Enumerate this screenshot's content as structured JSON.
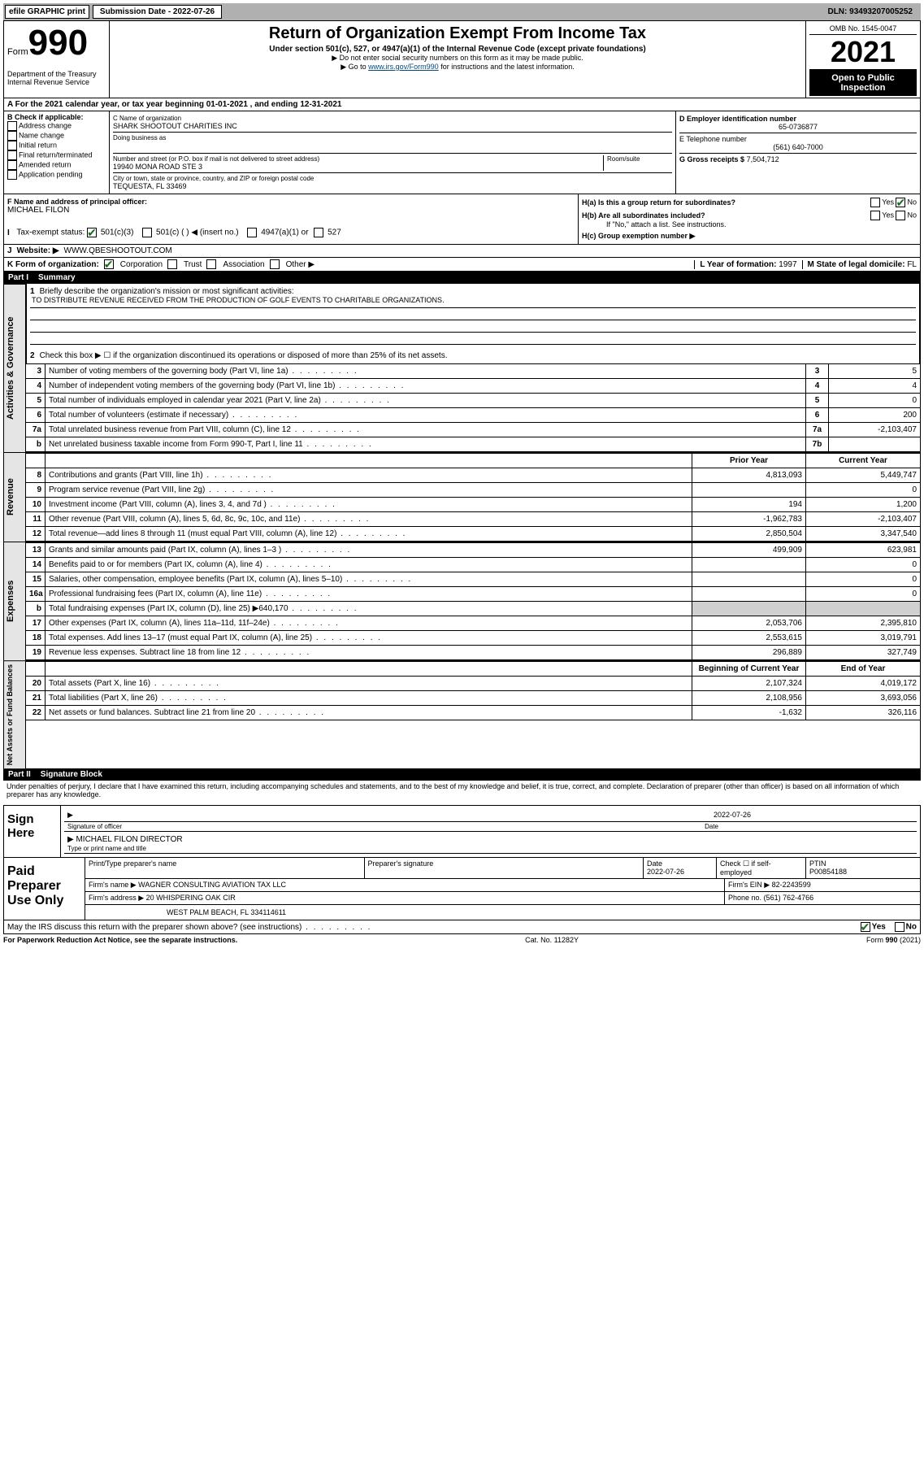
{
  "top": {
    "efile": "efile GRAPHIC print",
    "submission_label": "Submission Date - 2022-07-26",
    "dln": "DLN: 93493207005252"
  },
  "header": {
    "form_prefix": "Form",
    "form_number": "990",
    "dept": "Department of the Treasury",
    "irs": "Internal Revenue Service",
    "title": "Return of Organization Exempt From Income Tax",
    "subtitle": "Under section 501(c), 527, or 4947(a)(1) of the Internal Revenue Code (except private foundations)",
    "note1": "▶ Do not enter social security numbers on this form as it may be made public.",
    "note2_prefix": "▶ Go to ",
    "note2_link": "www.irs.gov/Form990",
    "note2_suffix": " for instructions and the latest information.",
    "omb": "OMB No. 1545-0047",
    "year": "2021",
    "open": "Open to Public Inspection"
  },
  "rowA": "A For the 2021 calendar year, or tax year beginning 01-01-2021    , and ending 12-31-2021",
  "sectionB": {
    "b_label": "B Check if applicable:",
    "checks": [
      "Address change",
      "Name change",
      "Initial return",
      "Final return/terminated",
      "Amended return",
      "Application pending"
    ],
    "c_label": "C Name of organization",
    "org_name": "SHARK SHOOTOUT CHARITIES INC",
    "dba_label": "Doing business as",
    "addr_label": "Number and street (or P.O. box if mail is not delivered to street address)",
    "room_label": "Room/suite",
    "addr": "19940 MONA ROAD STE 3",
    "city_label": "City or town, state or province, country, and ZIP or foreign postal code",
    "city": "TEQUESTA, FL  33469",
    "d_label": "D Employer identification number",
    "ein": "65-0736877",
    "e_label": "E Telephone number",
    "phone": "(561) 640-7000",
    "g_label": "G Gross receipts $",
    "gross": "7,504,712",
    "f_label": "F  Name and address of principal officer:",
    "officer": "MICHAEL FILON",
    "ha": "H(a)  Is this a group return for subordinates?",
    "hb": "H(b)  Are all subordinates included?",
    "hb_note": "If \"No,\" attach a list. See instructions.",
    "hc": "H(c)  Group exemption number ▶",
    "yes": "Yes",
    "no": "No"
  },
  "rowI": {
    "label": "Tax-exempt status:",
    "opt1": "501(c)(3)",
    "opt2": "501(c) (  ) ◀ (insert no.)",
    "opt3": "4947(a)(1) or",
    "opt4": "527"
  },
  "rowJ": {
    "label": "Website: ▶",
    "value": "WWW.QBESHOOTOUT.COM"
  },
  "rowK": {
    "label": "K Form of organization:",
    "opts": [
      "Corporation",
      "Trust",
      "Association",
      "Other ▶"
    ],
    "l_label": "L Year of formation:",
    "l_val": "1997",
    "m_label": "M State of legal domicile:",
    "m_val": "FL"
  },
  "partI": {
    "num": "Part I",
    "title": "Summary"
  },
  "summary": {
    "q1_label": "Briefly describe the organization's mission or most significant activities:",
    "q1_text": "TO DISTRIBUTE REVENUE RECEIVED FROM THE PRODUCTION OF GOLF EVENTS TO CHARITABLE ORGANIZATIONS.",
    "q2": "Check this box ▶ ☐  if the organization discontinued its operations or disposed of more than 25% of its net assets.",
    "rows3_7": [
      {
        "n": "3",
        "t": "Number of voting members of the governing body (Part VI, line 1a)",
        "lab": "3",
        "v": "5"
      },
      {
        "n": "4",
        "t": "Number of independent voting members of the governing body (Part VI, line 1b)",
        "lab": "4",
        "v": "4"
      },
      {
        "n": "5",
        "t": "Total number of individuals employed in calendar year 2021 (Part V, line 2a)",
        "lab": "5",
        "v": "0"
      },
      {
        "n": "6",
        "t": "Total number of volunteers (estimate if necessary)",
        "lab": "6",
        "v": "200"
      },
      {
        "n": "7a",
        "t": "Total unrelated business revenue from Part VIII, column (C), line 12",
        "lab": "7a",
        "v": "-2,103,407"
      },
      {
        "n": "b",
        "t": "Net unrelated business taxable income from Form 990-T, Part I, line 11",
        "lab": "7b",
        "v": ""
      }
    ],
    "col_prior": "Prior Year",
    "col_current": "Current Year",
    "revenue": [
      {
        "n": "8",
        "t": "Contributions and grants (Part VIII, line 1h)",
        "p": "4,813,093",
        "c": "5,449,747"
      },
      {
        "n": "9",
        "t": "Program service revenue (Part VIII, line 2g)",
        "p": "",
        "c": "0"
      },
      {
        "n": "10",
        "t": "Investment income (Part VIII, column (A), lines 3, 4, and 7d )",
        "p": "194",
        "c": "1,200"
      },
      {
        "n": "11",
        "t": "Other revenue (Part VIII, column (A), lines 5, 6d, 8c, 9c, 10c, and 11e)",
        "p": "-1,962,783",
        "c": "-2,103,407"
      },
      {
        "n": "12",
        "t": "Total revenue—add lines 8 through 11 (must equal Part VIII, column (A), line 12)",
        "p": "2,850,504",
        "c": "3,347,540"
      }
    ],
    "expenses": [
      {
        "n": "13",
        "t": "Grants and similar amounts paid (Part IX, column (A), lines 1–3 )",
        "p": "499,909",
        "c": "623,981"
      },
      {
        "n": "14",
        "t": "Benefits paid to or for members (Part IX, column (A), line 4)",
        "p": "",
        "c": "0"
      },
      {
        "n": "15",
        "t": "Salaries, other compensation, employee benefits (Part IX, column (A), lines 5–10)",
        "p": "",
        "c": "0"
      },
      {
        "n": "16a",
        "t": "Professional fundraising fees (Part IX, column (A), line 11e)",
        "p": "",
        "c": "0"
      },
      {
        "n": "b",
        "t": "Total fundraising expenses (Part IX, column (D), line 25) ▶640,170",
        "p": "SHADED",
        "c": "SHADED"
      },
      {
        "n": "17",
        "t": "Other expenses (Part IX, column (A), lines 11a–11d, 11f–24e)",
        "p": "2,053,706",
        "c": "2,395,810"
      },
      {
        "n": "18",
        "t": "Total expenses. Add lines 13–17 (must equal Part IX, column (A), line 25)",
        "p": "2,553,615",
        "c": "3,019,791"
      },
      {
        "n": "19",
        "t": "Revenue less expenses. Subtract line 18 from line 12",
        "p": "296,889",
        "c": "327,749"
      }
    ],
    "col_begin": "Beginning of Current Year",
    "col_end": "End of Year",
    "netassets": [
      {
        "n": "20",
        "t": "Total assets (Part X, line 16)",
        "p": "2,107,324",
        "c": "4,019,172"
      },
      {
        "n": "21",
        "t": "Total liabilities (Part X, line 26)",
        "p": "2,108,956",
        "c": "3,693,056"
      },
      {
        "n": "22",
        "t": "Net assets or fund balances. Subtract line 21 from line 20",
        "p": "-1,632",
        "c": "326,116"
      }
    ]
  },
  "sideLabels": {
    "gov": "Activities & Governance",
    "rev": "Revenue",
    "exp": "Expenses",
    "net": "Net Assets or Fund Balances"
  },
  "partII": {
    "num": "Part II",
    "title": "Signature Block",
    "declaration": "Under penalties of perjury, I declare that I have examined this return, including accompanying schedules and statements, and to the best of my knowledge and belief, it is true, correct, and complete. Declaration of preparer (other than officer) is based on all information of which preparer has any knowledge."
  },
  "sign": {
    "here": "Sign Here",
    "sig_of_officer": "Signature of officer",
    "date": "Date",
    "date_val": "2022-07-26",
    "name": "MICHAEL FILON  DIRECTOR",
    "name_caption": "Type or print name and title"
  },
  "paid": {
    "label": "Paid Preparer Use Only",
    "h1": "Print/Type preparer's name",
    "h2": "Preparer's signature",
    "h3_date": "Date",
    "h3_val": "2022-07-26",
    "h4": "Check ☐ if self-employed",
    "h5": "PTIN",
    "ptin": "P00854188",
    "firm_name_label": "Firm's name    ▶",
    "firm_name": "WAGNER CONSULTING AVIATION TAX LLC",
    "firm_ein_label": "Firm's EIN ▶",
    "firm_ein": "82-2243599",
    "firm_addr_label": "Firm's address ▶",
    "firm_addr1": "20 WHISPERING OAK CIR",
    "firm_addr2": "WEST PALM BEACH, FL  334114611",
    "phone_label": "Phone no.",
    "phone": "(561) 762-4766"
  },
  "discuss": {
    "q": "May the IRS discuss this return with the preparer shown above? (see instructions)",
    "yes": "Yes",
    "no": "No"
  },
  "footer": {
    "left": "For Paperwork Reduction Act Notice, see the separate instructions.",
    "mid": "Cat. No. 11282Y",
    "right": "Form 990 (2021)"
  }
}
